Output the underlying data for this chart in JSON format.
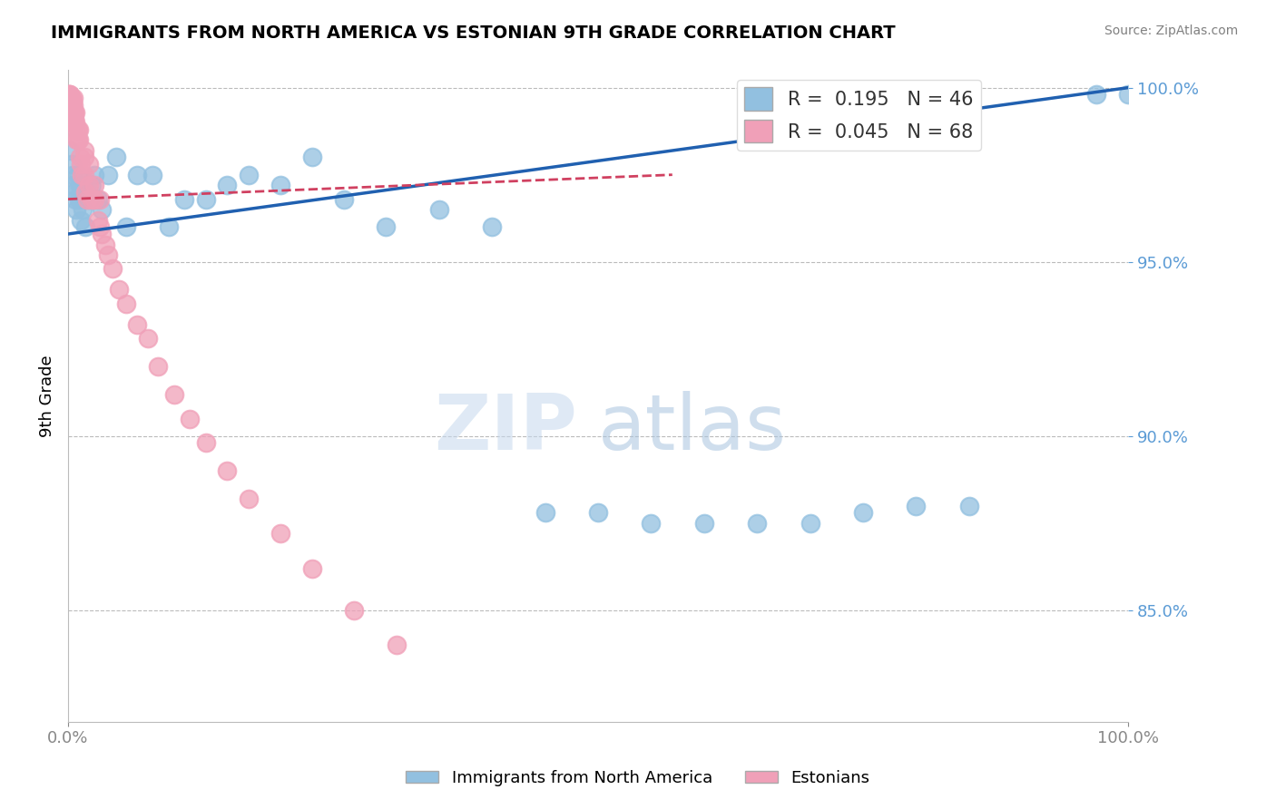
{
  "title": "IMMIGRANTS FROM NORTH AMERICA VS ESTONIAN 9TH GRADE CORRELATION CHART",
  "source": "Source: ZipAtlas.com",
  "ylabel": "9th Grade",
  "watermark_zip": "ZIP",
  "watermark_atlas": "atlas",
  "xlim": [
    0.0,
    1.0
  ],
  "ylim": [
    0.818,
    1.005
  ],
  "yticks": [
    0.85,
    0.9,
    0.95,
    1.0
  ],
  "ytick_labels": [
    "85.0%",
    "90.0%",
    "95.0%",
    "100.0%"
  ],
  "xtick_positions": [
    0.0,
    1.0
  ],
  "xtick_labels": [
    "0.0%",
    "100.0%"
  ],
  "blue_R": 0.195,
  "blue_N": 46,
  "pink_R": 0.045,
  "pink_N": 68,
  "blue_color": "#92c0e0",
  "pink_color": "#f0a0b8",
  "blue_line_color": "#2060b0",
  "pink_line_color": "#d04060",
  "legend_label_blue": "Immigrants from North America",
  "legend_label_pink": "Estonians",
  "blue_line_x0": 0.0,
  "blue_line_y0": 0.958,
  "blue_line_x1": 1.0,
  "blue_line_y1": 1.0,
  "pink_line_x0": 0.0,
  "pink_line_y0": 0.968,
  "pink_line_x1": 0.57,
  "pink_line_y1": 0.975,
  "blue_points_x": [
    0.002,
    0.003,
    0.004,
    0.005,
    0.006,
    0.007,
    0.008,
    0.009,
    0.01,
    0.011,
    0.012,
    0.014,
    0.016,
    0.018,
    0.02,
    0.022,
    0.025,
    0.028,
    0.032,
    0.038,
    0.045,
    0.055,
    0.065,
    0.08,
    0.095,
    0.11,
    0.13,
    0.15,
    0.17,
    0.2,
    0.23,
    0.26,
    0.3,
    0.35,
    0.4,
    0.45,
    0.5,
    0.55,
    0.6,
    0.65,
    0.7,
    0.75,
    0.8,
    0.85,
    0.97,
    1.0
  ],
  "blue_points_y": [
    0.982,
    0.978,
    0.975,
    0.972,
    0.97,
    0.968,
    0.965,
    0.975,
    0.968,
    0.972,
    0.962,
    0.965,
    0.96,
    0.97,
    0.968,
    0.972,
    0.975,
    0.968,
    0.965,
    0.975,
    0.98,
    0.96,
    0.975,
    0.975,
    0.96,
    0.968,
    0.968,
    0.972,
    0.975,
    0.972,
    0.98,
    0.968,
    0.96,
    0.965,
    0.96,
    0.878,
    0.878,
    0.875,
    0.875,
    0.875,
    0.875,
    0.878,
    0.88,
    0.88,
    0.998,
    0.998
  ],
  "pink_points_x": [
    0.001,
    0.001,
    0.001,
    0.001,
    0.001,
    0.002,
    0.002,
    0.002,
    0.002,
    0.003,
    0.003,
    0.003,
    0.003,
    0.004,
    0.004,
    0.004,
    0.005,
    0.005,
    0.005,
    0.005,
    0.006,
    0.006,
    0.006,
    0.007,
    0.007,
    0.008,
    0.008,
    0.009,
    0.009,
    0.01,
    0.011,
    0.012,
    0.013,
    0.015,
    0.015,
    0.016,
    0.018,
    0.02,
    0.022,
    0.025,
    0.028,
    0.03,
    0.032,
    0.035,
    0.038,
    0.042,
    0.048,
    0.055,
    0.065,
    0.075,
    0.085,
    0.1,
    0.115,
    0.13,
    0.15,
    0.17,
    0.2,
    0.23,
    0.27,
    0.31,
    0.001,
    0.002,
    0.003,
    0.01,
    0.015,
    0.02,
    0.025,
    0.03
  ],
  "pink_points_y": [
    0.998,
    0.997,
    0.996,
    0.995,
    0.994,
    0.998,
    0.997,
    0.995,
    0.993,
    0.997,
    0.996,
    0.994,
    0.992,
    0.996,
    0.994,
    0.992,
    0.997,
    0.995,
    0.993,
    0.99,
    0.993,
    0.991,
    0.99,
    0.993,
    0.99,
    0.988,
    0.985,
    0.988,
    0.985,
    0.985,
    0.98,
    0.978,
    0.975,
    0.98,
    0.975,
    0.97,
    0.968,
    0.972,
    0.968,
    0.968,
    0.962,
    0.96,
    0.958,
    0.955,
    0.952,
    0.948,
    0.942,
    0.938,
    0.932,
    0.928,
    0.92,
    0.912,
    0.905,
    0.898,
    0.89,
    0.882,
    0.872,
    0.862,
    0.85,
    0.84,
    0.998,
    0.997,
    0.996,
    0.988,
    0.982,
    0.978,
    0.972,
    0.968
  ]
}
